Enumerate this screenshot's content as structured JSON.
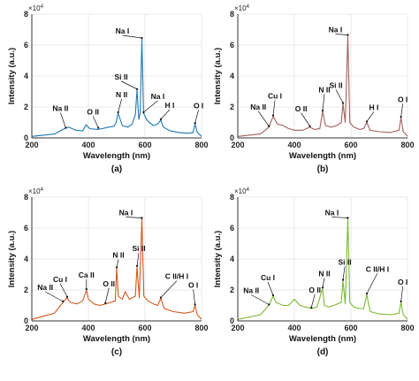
{
  "figure": {
    "exponent_label": "×10",
    "exponent_power": "4",
    "xlabel": "Wavelength (nm)",
    "ylabel": "Intensity (a.u.)"
  },
  "chart_data": [
    {
      "type": "line",
      "panel_label": "(a)",
      "color": "#1f77b4",
      "xlim": [
        200,
        800
      ],
      "ylim": [
        0,
        8
      ],
      "xticks": [
        200,
        400,
        600,
        800
      ],
      "yticks": [
        0,
        2,
        4,
        6,
        8
      ],
      "xlabel": "Wavelength (nm)",
      "ylabel": "Intensity (a.u.)",
      "y_multiplier": "×10^4",
      "x": [
        200,
        280,
        310,
        330,
        355,
        380,
        392,
        405,
        430,
        450,
        470,
        490,
        498,
        505,
        520,
        540,
        555,
        566,
        572,
        578,
        583,
        589,
        595,
        605,
        615,
        630,
        645,
        656,
        665,
        690,
        720,
        750,
        770,
        777,
        785,
        800
      ],
      "y": [
        0.1,
        0.25,
        0.55,
        0.7,
        0.5,
        0.45,
        0.85,
        0.6,
        0.55,
        0.6,
        0.7,
        0.75,
        1.0,
        1.6,
        0.8,
        0.7,
        0.9,
        1.5,
        3.1,
        1.2,
        1.6,
        6.4,
        1.6,
        1.2,
        1.0,
        0.8,
        0.9,
        1.15,
        0.7,
        0.45,
        0.35,
        0.3,
        0.35,
        0.9,
        0.35,
        0.1
      ],
      "annotations": [
        {
          "text": "Na I",
          "x": 589,
          "y": 6.4
        },
        {
          "text": "Si II",
          "x": 572,
          "y": 3.1
        },
        {
          "text": "Na I",
          "x": 595,
          "y": 1.6
        },
        {
          "text": "H I",
          "x": 656,
          "y": 1.15
        },
        {
          "text": "O I",
          "x": 777,
          "y": 0.9
        },
        {
          "text": "N II",
          "x": 505,
          "y": 1.6
        },
        {
          "text": "O II",
          "x": 435,
          "y": 0.6
        },
        {
          "text": "Na II",
          "x": 320,
          "y": 0.6
        }
      ]
    },
    {
      "type": "line",
      "panel_label": "(b)",
      "color": "#a0605c",
      "xlim": [
        200,
        800
      ],
      "ylim": [
        0,
        8
      ],
      "xticks": [
        200,
        400,
        600,
        800
      ],
      "yticks": [
        0,
        2,
        4,
        6,
        8
      ],
      "xlabel": "Wavelength (nm)",
      "ylabel": "Intensity (a.u.)",
      "y_multiplier": "×10^4",
      "x": [
        200,
        280,
        310,
        325,
        340,
        360,
        380,
        400,
        430,
        455,
        470,
        490,
        500,
        510,
        530,
        550,
        566,
        572,
        580,
        589,
        596,
        610,
        630,
        645,
        656,
        668,
        700,
        740,
        770,
        777,
        785,
        800
      ],
      "y": [
        0.1,
        0.25,
        0.7,
        1.4,
        0.9,
        0.8,
        0.6,
        0.5,
        0.5,
        0.7,
        0.55,
        0.6,
        1.7,
        0.8,
        0.7,
        0.8,
        1.0,
        2.2,
        1.0,
        6.6,
        1.0,
        0.7,
        0.55,
        0.6,
        1.0,
        0.5,
        0.4,
        0.35,
        0.5,
        1.3,
        0.4,
        0.1
      ],
      "annotations": [
        {
          "text": "Na I",
          "x": 589,
          "y": 6.6
        },
        {
          "text": "Si II",
          "x": 572,
          "y": 2.2
        },
        {
          "text": "H I",
          "x": 656,
          "y": 1.0
        },
        {
          "text": "O I",
          "x": 777,
          "y": 1.3
        },
        {
          "text": "N II",
          "x": 500,
          "y": 1.7
        },
        {
          "text": "O II",
          "x": 455,
          "y": 0.7
        },
        {
          "text": "Cu I",
          "x": 325,
          "y": 1.4
        },
        {
          "text": "Na II",
          "x": 310,
          "y": 0.7
        }
      ]
    },
    {
      "type": "line",
      "panel_label": "(c)",
      "color": "#d2581e",
      "xlim": [
        200,
        800
      ],
      "ylim": [
        0,
        8
      ],
      "xticks": [
        200,
        400,
        600,
        800
      ],
      "yticks": [
        0,
        2,
        4,
        6,
        8
      ],
      "xlabel": "Wavelength (nm)",
      "ylabel": "Intensity (a.u.)",
      "y_multiplier": "×10^4",
      "x": [
        200,
        280,
        310,
        325,
        335,
        360,
        380,
        393,
        400,
        420,
        440,
        460,
        480,
        495,
        500,
        506,
        520,
        530,
        545,
        566,
        572,
        580,
        589,
        596,
        610,
        630,
        645,
        656,
        668,
        700,
        740,
        770,
        777,
        785,
        800
      ],
      "y": [
        0.1,
        0.5,
        1.2,
        1.5,
        1.2,
        1.1,
        1.3,
        2.0,
        1.4,
        1.1,
        1.0,
        1.1,
        1.2,
        1.3,
        3.4,
        1.6,
        1.4,
        1.9,
        1.4,
        1.6,
        3.5,
        1.5,
        6.6,
        1.6,
        1.3,
        1.1,
        1.0,
        1.45,
        0.8,
        0.6,
        0.5,
        0.6,
        1.0,
        0.4,
        0.1
      ],
      "annotations": [
        {
          "text": "Na I",
          "x": 589,
          "y": 6.6
        },
        {
          "text": "Si II",
          "x": 572,
          "y": 3.5
        },
        {
          "text": "N II",
          "x": 500,
          "y": 3.4
        },
        {
          "text": "Ca II",
          "x": 393,
          "y": 2.0
        },
        {
          "text": "O II",
          "x": 460,
          "y": 1.1
        },
        {
          "text": "Cu I",
          "x": 325,
          "y": 1.5
        },
        {
          "text": "Na II",
          "x": 310,
          "y": 1.2
        },
        {
          "text": "C II/H I",
          "x": 656,
          "y": 1.45
        },
        {
          "text": "O I",
          "x": 777,
          "y": 1.0
        }
      ]
    },
    {
      "type": "line",
      "panel_label": "(d)",
      "color": "#7cb832",
      "xlim": [
        200,
        800
      ],
      "ylim": [
        0,
        8
      ],
      "xticks": [
        200,
        400,
        600,
        800
      ],
      "yticks": [
        0,
        2,
        4,
        6,
        8
      ],
      "xlabel": "Wavelength (nm)",
      "ylabel": "Intensity (a.u.)",
      "y_multiplier": "×10^4",
      "x": [
        200,
        280,
        310,
        325,
        335,
        360,
        380,
        400,
        420,
        440,
        460,
        480,
        500,
        506,
        520,
        540,
        566,
        572,
        580,
        589,
        596,
        610,
        630,
        645,
        656,
        668,
        700,
        740,
        770,
        777,
        785,
        800
      ],
      "y": [
        0.1,
        0.4,
        1.0,
        1.6,
        1.2,
        1.0,
        1.0,
        1.4,
        1.0,
        0.9,
        0.8,
        0.9,
        2.1,
        1.0,
        0.9,
        1.0,
        1.2,
        2.6,
        1.1,
        6.6,
        1.2,
        0.9,
        0.8,
        0.8,
        1.7,
        0.6,
        0.45,
        0.4,
        0.5,
        1.2,
        0.4,
        0.1
      ],
      "annotations": [
        {
          "text": "Na I",
          "x": 589,
          "y": 6.6
        },
        {
          "text": "Si II",
          "x": 572,
          "y": 2.6
        },
        {
          "text": "N II",
          "x": 500,
          "y": 2.1
        },
        {
          "text": "Cu I",
          "x": 325,
          "y": 1.6
        },
        {
          "text": "Na II",
          "x": 310,
          "y": 1.0
        },
        {
          "text": "O II",
          "x": 460,
          "y": 0.8
        },
        {
          "text": "C II/H I",
          "x": 656,
          "y": 1.7
        },
        {
          "text": "O I",
          "x": 777,
          "y": 1.2
        }
      ]
    }
  ]
}
